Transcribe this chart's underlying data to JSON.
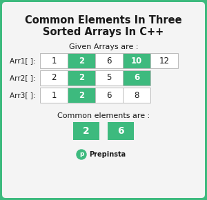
{
  "title": "Common Elements In Three\nSorted Arrays In C++",
  "given_label": "Given Arrays are :",
  "common_label": "Common elements are :",
  "arrays": [
    {
      "name": "Arr1[ ]:",
      "values": [
        1,
        2,
        6,
        10,
        12
      ],
      "highlighted": [
        false,
        true,
        false,
        true,
        false
      ]
    },
    {
      "name": "Arr2[ ]:",
      "values": [
        2,
        2,
        5,
        6
      ],
      "highlighted": [
        false,
        true,
        false,
        true
      ]
    },
    {
      "name": "Arr3[ ]:",
      "values": [
        1,
        2,
        6,
        8
      ],
      "highlighted": [
        false,
        true,
        false,
        false
      ]
    }
  ],
  "common_elements": [
    2,
    6
  ],
  "bg_outer": "#3dba7e",
  "bg_inner": "#f4f4f4",
  "cell_green": "#3dba7e",
  "cell_white": "#ffffff",
  "text_dark": "#1a1a1a",
  "text_white": "#ffffff",
  "border_color": "#bbbbbb",
  "title_fontsize": 10.5,
  "label_fontsize": 8.0,
  "cell_fontsize": 8.5,
  "arr_name_fontsize": 7.5,
  "prepinsta_fontsize": 7.0
}
